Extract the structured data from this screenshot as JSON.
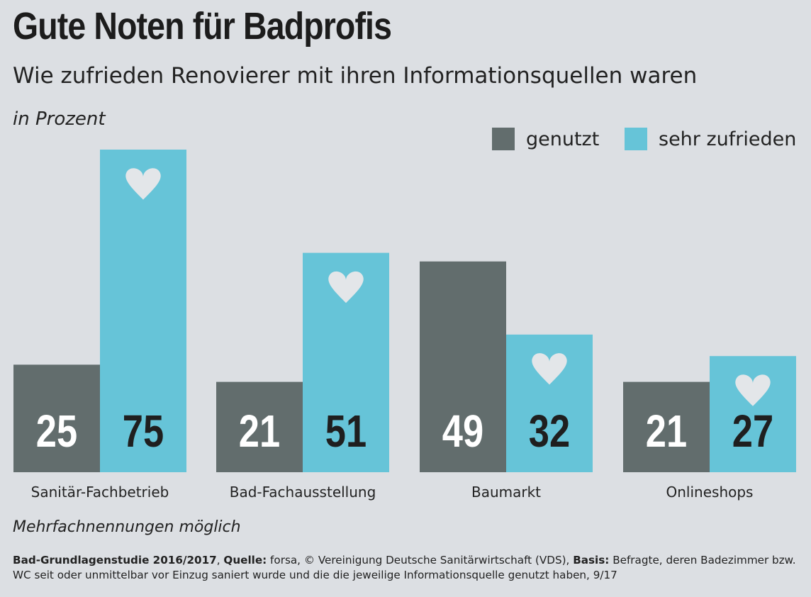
{
  "title": "Gute Noten für Badprofis",
  "subtitle": "Wie zufrieden Renovierer mit ihren Informationsquellen waren",
  "unit": "in Prozent",
  "note": "Mehrfachnennungen möglich",
  "source": {
    "label1": "Bad-Grundlagenstudie 2016/2017",
    "sep1": ", ",
    "label2": "Quelle:",
    "text2": " forsa, © Vereinigung Deutsche Sanitärwirtschaft (VDS), ",
    "label3": "Basis:",
    "text3": " Befragte, deren Badezimmer bzw. WC seit oder unmittelbar vor Einzug saniert wurde und die die jeweilige Informationsquelle genutzt haben, 9/17"
  },
  "colors": {
    "genutzt": "#626d6d",
    "sehr_zufrieden": "#66c4d8",
    "background": "#dcdfe3",
    "heart": "#e3e6e9"
  },
  "chart_data": {
    "type": "bar",
    "title": "Gute Noten für Badprofis",
    "subtitle": "Wie zufrieden Renovierer mit ihren Informationsquellen waren",
    "ylabel": "in Prozent",
    "ylim": [
      0,
      75
    ],
    "grid": false,
    "legend_position": "top-right",
    "categories": [
      "Sanitär-Fachbetrieb",
      "Bad-Fachausstellung",
      "Baumarkt",
      "Onlineshops"
    ],
    "series": [
      {
        "name": "genutzt",
        "values": [
          25,
          21,
          49,
          21
        ],
        "color": "#626d6d",
        "label_color": "#ffffff"
      },
      {
        "name": "sehr zufrieden",
        "values": [
          75,
          51,
          32,
          27
        ],
        "color": "#66c4d8",
        "label_color": "#1f1f1f",
        "icon": "heart-icon"
      }
    ]
  }
}
